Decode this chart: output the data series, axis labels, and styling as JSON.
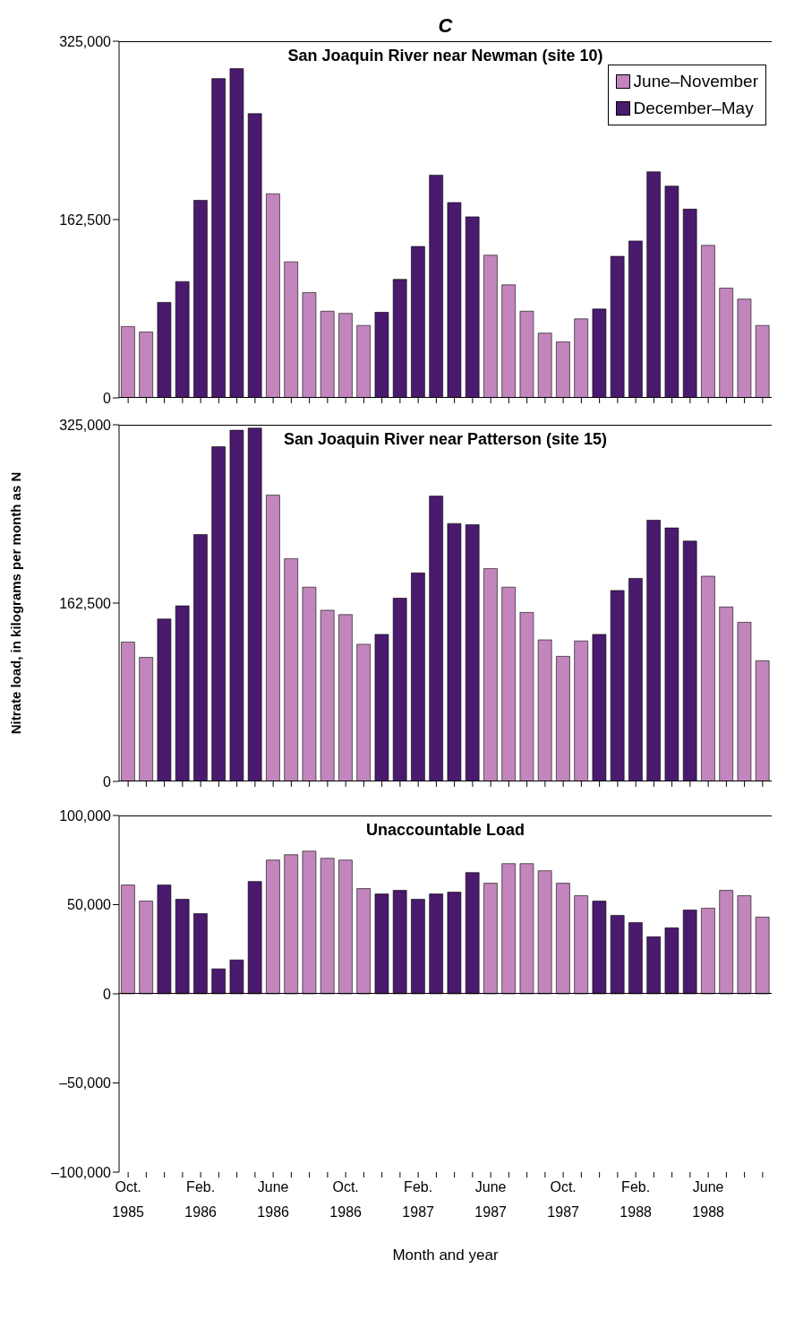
{
  "chart_data": [
    {
      "type": "bar",
      "title": "C",
      "subtitle": "San Joaquin River near Newman (site 10)",
      "categories": [
        null,
        null,
        null,
        null,
        null,
        null,
        null,
        null,
        null,
        null,
        null,
        null,
        null,
        null,
        null,
        null,
        null,
        null,
        null,
        null,
        null,
        null,
        null,
        null,
        null,
        null,
        null,
        null,
        null,
        null,
        null,
        null,
        null,
        null,
        null,
        null
      ],
      "series": [
        {
          "name": "June–November",
          "color": "#c285bd",
          "values": [
            65000,
            60000,
            null,
            null,
            null,
            null,
            null,
            null,
            186000,
            124000,
            96000,
            79000,
            77000,
            66000,
            null,
            null,
            null,
            null,
            null,
            null,
            130000,
            103000,
            79000,
            59000,
            51000,
            72000,
            null,
            null,
            null,
            null,
            null,
            null,
            139000,
            100000,
            90000,
            66000
          ]
        },
        {
          "name": "December–May",
          "color": "#4a1a6e",
          "values": [
            null,
            null,
            87000,
            106000,
            180000,
            291000,
            300000,
            259000,
            null,
            null,
            null,
            null,
            null,
            null,
            78000,
            108000,
            138000,
            203000,
            178000,
            165000,
            null,
            null,
            null,
            null,
            null,
            null,
            81000,
            129000,
            143000,
            206000,
            193000,
            172000,
            null,
            null,
            null,
            null
          ]
        }
      ],
      "ylim": [
        0,
        325000
      ],
      "yticks": [
        {
          "value": 0,
          "label": "0"
        },
        {
          "value": 162500,
          "label": "162,500"
        },
        {
          "value": 325000,
          "label": "325,000"
        }
      ],
      "tick_labels": "y",
      "legend": "top right"
    },
    {
      "type": "bar",
      "title": "San Joaquin River near Patterson (site 15)",
      "ylabel": "Nitrate load, in kilograms per month as N",
      "categories": [
        null,
        null,
        null,
        null,
        null,
        null,
        null,
        null,
        null,
        null,
        null,
        null,
        null,
        null,
        null,
        null,
        null,
        null,
        null,
        null,
        null,
        null,
        null,
        null,
        null,
        null,
        null,
        null,
        null,
        null,
        null,
        null,
        null,
        null,
        null,
        null
      ],
      "series": [
        {
          "color": "#c285bd",
          "values": [
            127000,
            113000,
            null,
            null,
            null,
            null,
            null,
            null,
            261000,
            203000,
            177000,
            156000,
            152000,
            125000,
            null,
            null,
            null,
            null,
            null,
            null,
            194000,
            177000,
            154000,
            129000,
            114000,
            128000,
            null,
            null,
            null,
            null,
            null,
            null,
            187000,
            159000,
            145000,
            110000
          ]
        },
        {
          "color": "#4a1a6e",
          "values": [
            null,
            null,
            148000,
            160000,
            225000,
            305000,
            320000,
            322000,
            null,
            null,
            null,
            null,
            null,
            null,
            134000,
            167000,
            190000,
            260000,
            235000,
            234000,
            null,
            null,
            null,
            null,
            null,
            null,
            134000,
            174000,
            185000,
            238000,
            231000,
            219000,
            null,
            null,
            null,
            null
          ]
        }
      ],
      "ylim": [
        0,
        325000
      ],
      "yticks": [
        {
          "value": 0,
          "label": "0"
        },
        {
          "value": 162500,
          "label": "162,500"
        },
        {
          "value": 325000,
          "label": "325,000"
        }
      ],
      "tick_labels": "y"
    },
    {
      "type": "bar",
      "title": "Unaccountable Load",
      "xlabel": "Month and year",
      "categories": [
        "Oct. 1985",
        null,
        null,
        null,
        "Feb. 1986",
        null,
        null,
        null,
        "June 1986",
        null,
        null,
        null,
        "Oct. 1986",
        null,
        null,
        null,
        "Feb. 1987",
        null,
        null,
        null,
        "June 1987",
        null,
        null,
        null,
        "Oct. 1987",
        null,
        null,
        null,
        "Feb. 1988",
        null,
        null,
        null,
        "June 1988",
        null,
        null,
        null
      ],
      "series": [
        {
          "color": "#c285bd",
          "values": [
            61000,
            52000,
            null,
            null,
            null,
            null,
            null,
            null,
            75000,
            78000,
            80000,
            76000,
            75000,
            59000,
            null,
            null,
            null,
            null,
            null,
            null,
            62000,
            73000,
            73000,
            69000,
            62000,
            55000,
            null,
            null,
            null,
            null,
            null,
            null,
            48000,
            58000,
            55000,
            43000
          ]
        },
        {
          "color": "#4a1a6e",
          "values": [
            null,
            null,
            61000,
            53000,
            45000,
            14000,
            19000,
            63000,
            null,
            null,
            null,
            null,
            null,
            null,
            56000,
            58000,
            53000,
            56000,
            57000,
            68000,
            null,
            null,
            null,
            null,
            null,
            null,
            52000,
            44000,
            40000,
            32000,
            37000,
            47000,
            null,
            null,
            null,
            null
          ]
        }
      ],
      "ylim": [
        -100000,
        100000
      ],
      "yticks": [
        {
          "value": -100000,
          "label": "–100,000"
        },
        {
          "value": -50000,
          "label": "–50,000"
        },
        {
          "value": 0,
          "label": "0"
        },
        {
          "value": 50000,
          "label": "50,000"
        },
        {
          "value": 100000,
          "label": "100,000"
        }
      ]
    }
  ]
}
